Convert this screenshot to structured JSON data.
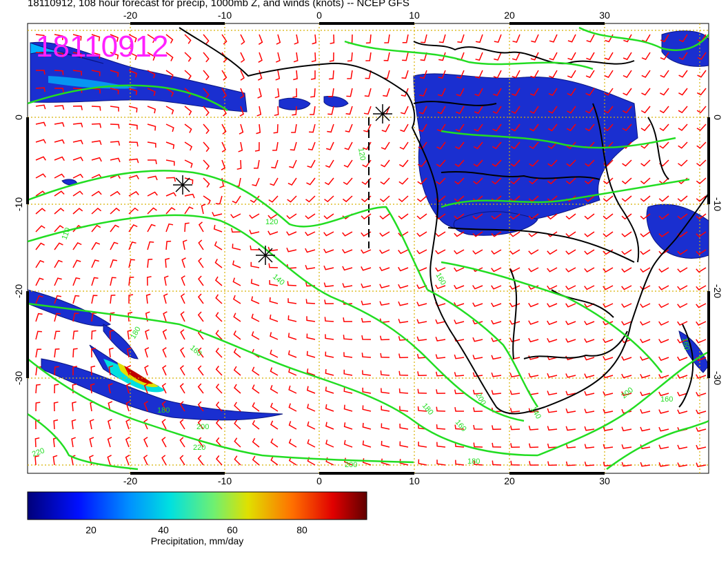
{
  "title": "18110912, 108 hour forecast for precip, 1000mb Z, and winds (knots) -- NCEP GFS",
  "map_stamp": "18110912",
  "colors": {
    "stamp": "#ff22ff",
    "wind_barbs": "#ff0000",
    "height_contours": "#22dd22",
    "grid": "#d8b000",
    "coastlines": "#000000"
  },
  "axes": {
    "lon_ticks": [
      "-20",
      "-10",
      "0",
      "10",
      "20",
      "30"
    ],
    "lat_ticks": [
      "0",
      "-10",
      "-20",
      "-30"
    ]
  },
  "contour_labels": [
    "110",
    "120",
    "120",
    "140",
    "160",
    "160",
    "180",
    "180",
    "180",
    "200",
    "200",
    "200",
    "220",
    "220",
    "160",
    "160",
    "180",
    "200",
    "140",
    "160"
  ],
  "colorbar": {
    "label": "Precipitation, mm/day",
    "ticks": [
      "20",
      "40",
      "60",
      "80"
    ]
  }
}
